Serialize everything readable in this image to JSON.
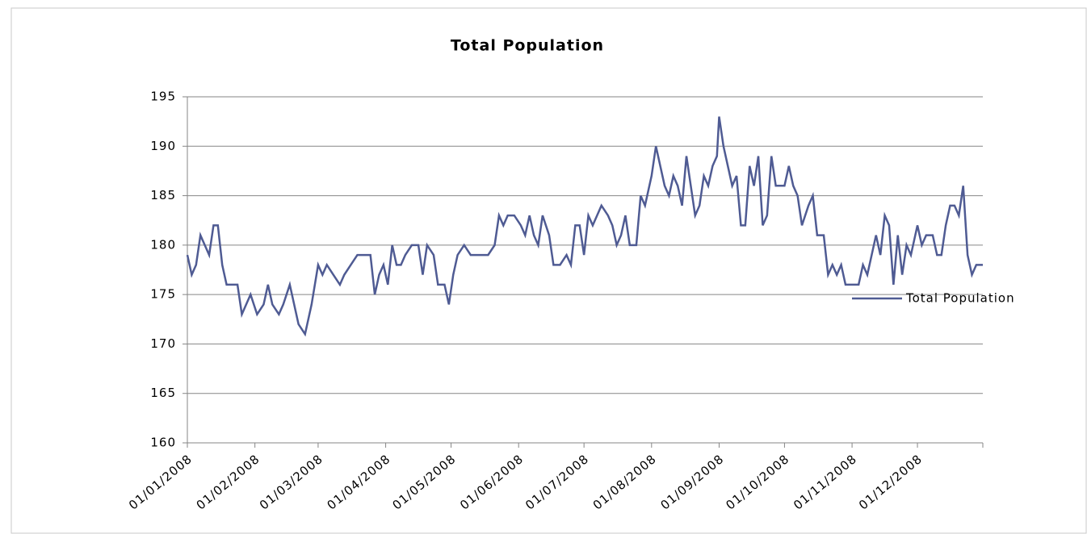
{
  "chart_data": {
    "type": "line",
    "title": "Total Population",
    "x": [
      "01/01/2008",
      "03/01/2008",
      "05/01/2008",
      "07/01/2008",
      "09/01/2008",
      "11/01/2008",
      "13/01/2008",
      "15/01/2008",
      "17/01/2008",
      "19/01/2008",
      "21/01/2008",
      "24/01/2008",
      "26/01/2008",
      "28/01/2008",
      "30/01/2008",
      "02/02/2008",
      "05/02/2008",
      "07/02/2008",
      "09/02/2008",
      "12/02/2008",
      "14/02/2008",
      "17/02/2008",
      "19/02/2008",
      "21/02/2008",
      "24/02/2008",
      "27/02/2008",
      "01/03/2008",
      "03/03/2008",
      "05/03/2008",
      "08/03/2008",
      "11/03/2008",
      "13/03/2008",
      "16/03/2008",
      "19/03/2008",
      "22/03/2008",
      "25/03/2008",
      "27/03/2008",
      "29/03/2008",
      "31/03/2008",
      "02/04/2008",
      "04/04/2008",
      "06/04/2008",
      "08/04/2008",
      "10/04/2008",
      "13/04/2008",
      "16/04/2008",
      "18/04/2008",
      "20/04/2008",
      "23/04/2008",
      "25/04/2008",
      "28/04/2008",
      "30/04/2008",
      "02/05/2008",
      "04/05/2008",
      "07/05/2008",
      "10/05/2008",
      "14/05/2008",
      "18/05/2008",
      "21/05/2008",
      "23/05/2008",
      "25/05/2008",
      "27/05/2008",
      "30/05/2008",
      "02/06/2008",
      "04/06/2008",
      "06/06/2008",
      "08/06/2008",
      "10/06/2008",
      "12/06/2008",
      "15/06/2008",
      "17/06/2008",
      "20/06/2008",
      "23/06/2008",
      "25/06/2008",
      "27/06/2008",
      "29/06/2008",
      "01/07/2008",
      "03/07/2008",
      "05/07/2008",
      "07/07/2008",
      "09/07/2008",
      "12/07/2008",
      "14/07/2008",
      "16/07/2008",
      "18/07/2008",
      "20/07/2008",
      "22/07/2008",
      "25/07/2008",
      "27/07/2008",
      "29/07/2008",
      "01/08/2008",
      "03/08/2008",
      "05/08/2008",
      "07/08/2008",
      "09/08/2008",
      "11/08/2008",
      "13/08/2008",
      "15/08/2008",
      "17/08/2008",
      "19/08/2008",
      "21/08/2008",
      "23/08/2008",
      "25/08/2008",
      "27/08/2008",
      "29/08/2008",
      "31/08/2008",
      "01/09/2008",
      "03/09/2008",
      "05/09/2008",
      "07/09/2008",
      "09/09/2008",
      "11/09/2008",
      "13/09/2008",
      "15/09/2008",
      "17/09/2008",
      "19/09/2008",
      "21/09/2008",
      "23/09/2008",
      "25/09/2008",
      "27/09/2008",
      "29/09/2008",
      "01/10/2008",
      "03/10/2008",
      "05/10/2008",
      "07/10/2008",
      "09/10/2008",
      "12/10/2008",
      "14/10/2008",
      "16/10/2008",
      "19/10/2008",
      "21/10/2008",
      "23/10/2008",
      "25/10/2008",
      "27/10/2008",
      "29/10/2008",
      "01/11/2008",
      "04/11/2008",
      "06/11/2008",
      "08/11/2008",
      "10/11/2008",
      "12/11/2008",
      "14/11/2008",
      "16/11/2008",
      "18/11/2008",
      "20/11/2008",
      "22/11/2008",
      "24/11/2008",
      "26/11/2008",
      "28/11/2008",
      "01/12/2008",
      "03/12/2008",
      "05/12/2008",
      "08/12/2008",
      "10/12/2008",
      "12/12/2008",
      "14/12/2008",
      "16/12/2008",
      "18/12/2008",
      "20/12/2008",
      "22/12/2008",
      "24/12/2008",
      "26/12/2008",
      "28/12/2008",
      "31/12/2008"
    ],
    "series": [
      {
        "name": "Total Population",
        "color": "#4f5b93",
        "values": [
          179,
          177,
          178,
          181,
          180,
          179,
          182,
          182,
          178,
          176,
          176,
          176,
          173,
          174,
          175,
          173,
          174,
          176,
          174,
          173,
          174,
          176,
          174,
          172,
          171,
          174,
          178,
          177,
          178,
          177,
          176,
          177,
          178,
          179,
          179,
          179,
          175,
          177,
          178,
          176,
          180,
          178,
          178,
          179,
          180,
          180,
          177,
          180,
          179,
          176,
          176,
          174,
          177,
          179,
          180,
          179,
          179,
          179,
          180,
          183,
          182,
          183,
          183,
          182,
          181,
          183,
          181,
          180,
          183,
          181,
          178,
          178,
          179,
          178,
          182,
          182,
          179,
          183,
          182,
          183,
          184,
          183,
          182,
          180,
          181,
          183,
          180,
          180,
          185,
          184,
          187,
          190,
          188,
          186,
          185,
          187,
          186,
          184,
          189,
          186,
          183,
          184,
          187,
          186,
          188,
          189,
          193,
          190,
          188,
          186,
          187,
          182,
          182,
          188,
          186,
          189,
          182,
          183,
          189,
          186,
          186,
          186,
          188,
          186,
          185,
          182,
          184,
          185,
          181,
          181,
          177,
          178,
          177,
          178,
          176,
          176,
          176,
          178,
          177,
          179,
          181,
          179,
          183,
          182,
          176,
          181,
          177,
          180,
          179,
          182,
          180,
          181,
          181,
          179,
          179,
          182,
          184,
          184,
          183,
          186,
          179,
          177,
          178,
          178
        ]
      }
    ],
    "xlim": [
      "01/01/2008",
      "31/12/2008"
    ],
    "xticks": [
      "01/01/2008",
      "01/02/2008",
      "01/03/2008",
      "01/04/2008",
      "01/05/2008",
      "01/06/2008",
      "01/07/2008",
      "01/08/2008",
      "01/09/2008",
      "01/10/2008",
      "01/11/2008",
      "01/12/2008"
    ],
    "ylim": [
      160,
      195
    ],
    "yticks": [
      160,
      165,
      170,
      175,
      180,
      185,
      190,
      195
    ],
    "grid": true,
    "legend": "right"
  }
}
